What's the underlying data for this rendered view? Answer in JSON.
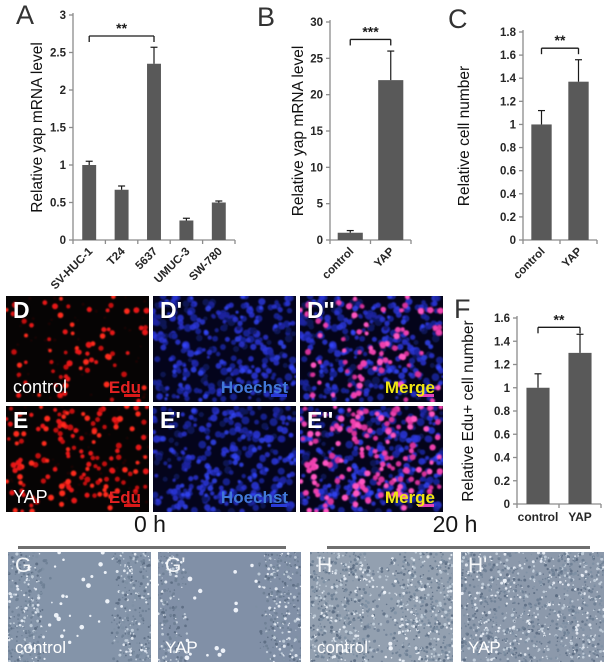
{
  "chart_data": [
    {
      "panel": "A",
      "type": "bar",
      "ylabel": "Relative yap mRNA level",
      "categories": [
        "SV-HUC-1",
        "T24",
        "5637",
        "UMUC-3",
        "SW-780"
      ],
      "values": [
        1.0,
        0.67,
        2.35,
        0.26,
        0.5
      ],
      "errors": [
        0.05,
        0.05,
        0.22,
        0.03,
        0.02
      ],
      "ylim": [
        0,
        3
      ],
      "yticks": [
        "0",
        "0.5",
        "1",
        "1.5",
        "2",
        "2.5",
        "3"
      ],
      "grid": false,
      "significance": {
        "from": 0,
        "to": 2,
        "label": "**",
        "y": 2.72
      }
    },
    {
      "panel": "B",
      "type": "bar",
      "ylabel": "Relative yap mRNA level",
      "categories": [
        "control",
        "YAP"
      ],
      "values": [
        1.0,
        22.0
      ],
      "errors": [
        0.3,
        4.0
      ],
      "ylim": [
        0,
        30
      ],
      "yticks": [
        "0",
        "5",
        "10",
        "15",
        "20",
        "25",
        "30"
      ],
      "grid": false,
      "significance": {
        "from": 0,
        "to": 1,
        "label": "***",
        "y": 27.6
      }
    },
    {
      "panel": "C",
      "type": "bar",
      "ylabel": "Relative cell number",
      "categories": [
        "control",
        "YAP"
      ],
      "values": [
        1.0,
        1.37
      ],
      "errors": [
        0.12,
        0.19
      ],
      "ylim": [
        0,
        1.8
      ],
      "yticks": [
        "0",
        "0.2",
        "0.4",
        "0.6",
        "0.8",
        "1",
        "1.2",
        "1.4",
        "1.6",
        "1.8"
      ],
      "grid": false,
      "significance": {
        "from": 0,
        "to": 1,
        "label": "**",
        "y": 1.66
      }
    },
    {
      "panel": "F",
      "type": "bar",
      "ylabel": "Relative Edu+ cell number",
      "categories": [
        "control",
        "YAP"
      ],
      "values": [
        1.0,
        1.3
      ],
      "errors": [
        0.12,
        0.16
      ],
      "ylim": [
        0,
        1.6
      ],
      "yticks": [
        "0",
        "0.2",
        "0.4",
        "0.6",
        "0.8",
        "1",
        "1.2",
        "1.4",
        "1.6"
      ],
      "grid": false,
      "significance": {
        "from": 0,
        "to": 1,
        "label": "**",
        "y": 1.52
      }
    }
  ],
  "microscopy": {
    "panels": [
      {
        "letter": "D",
        "condition": "control",
        "stain": "Edu"
      },
      {
        "letter": "D'",
        "stain": "Hoechst"
      },
      {
        "letter": "D''",
        "stain": "Merge"
      },
      {
        "letter": "E",
        "condition": "YAP",
        "stain": "Edu"
      },
      {
        "letter": "E'",
        "stain": "Hoechst"
      },
      {
        "letter": "E''",
        "stain": "Merge"
      }
    ]
  },
  "scratch_assay": {
    "timepoints": [
      "0 h",
      "20 h"
    ],
    "panels": [
      {
        "letter": "G",
        "condition": "control",
        "timepoint": "0 h"
      },
      {
        "letter": "G'",
        "condition": "YAP",
        "timepoint": "0 h"
      },
      {
        "letter": "H",
        "condition": "control",
        "timepoint": "20 h"
      },
      {
        "letter": "H'",
        "condition": "YAP",
        "timepoint": "20 h"
      }
    ]
  },
  "colors": {
    "bar": "#595959",
    "axis": "#8c8c8c",
    "error_bar": "#1a1a1a",
    "sig_marker": "#1a1a1a",
    "edu_label": "#e32222",
    "hoechst_label": "#4178d8",
    "merge_label": "#f0e612",
    "edu_dot": "#e81414",
    "hoechst_dot": "#2233cf",
    "merge_dot": "#ee3fae"
  }
}
